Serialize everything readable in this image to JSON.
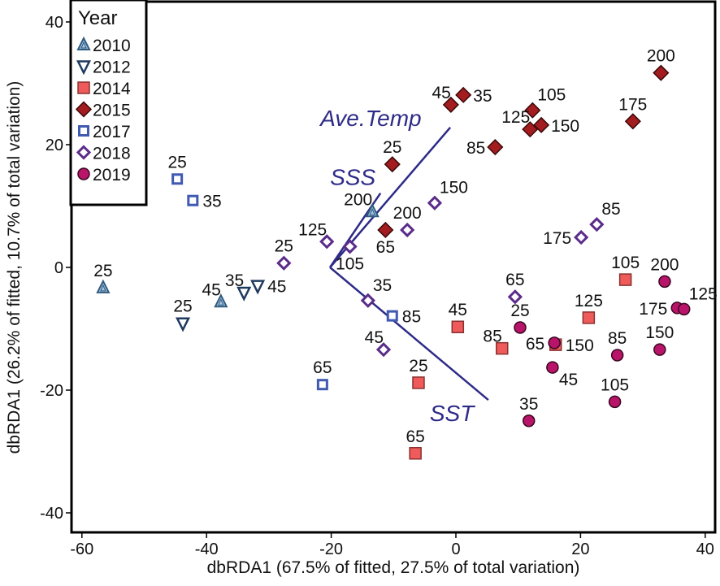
{
  "chart_data": {
    "type": "scatter",
    "xlabel": "dbRDA1 (67.5% of fitted, 27.5% of total variation)",
    "ylabel": "dbRDA1 (26.2% of fitted, 10.7% of total variation)",
    "xlim": [
      -62,
      40
    ],
    "ylim": [
      -43,
      41
    ],
    "xticks": [
      -60,
      -40,
      -20,
      0,
      20,
      40
    ],
    "yticks": [
      -40,
      -20,
      0,
      20,
      40
    ],
    "grid": false,
    "legend": {
      "title": "Year",
      "placement": "top-left"
    },
    "series": [
      {
        "name": "2010",
        "marker": "triangle-up",
        "fill": "#a9c6e2",
        "stroke": "#2f5b80",
        "points": [
          {
            "x": -56.6,
            "y": -3.3,
            "label": "25",
            "pos": "t"
          },
          {
            "x": -37.7,
            "y": -5.6,
            "label": "45",
            "pos": "tl"
          },
          {
            "x": -13.4,
            "y": 9.1,
            "label": "200",
            "pos": "tl"
          }
        ]
      },
      {
        "name": "2012",
        "marker": "triangle-down",
        "fill": "#ffffff",
        "stroke": "#1f3a5f",
        "points": [
          {
            "x": -43.8,
            "y": -9.1,
            "label": "25",
            "pos": "t"
          },
          {
            "x": -34.0,
            "y": -4.1,
            "label": "35",
            "pos": "tl"
          },
          {
            "x": -31.8,
            "y": -3.0,
            "label": "45",
            "pos": "r"
          }
        ]
      },
      {
        "name": "2014",
        "marker": "square",
        "fill": "#ef5b5b",
        "stroke": "#8a3030",
        "points": [
          {
            "x": 0.3,
            "y": -9.7,
            "label": "45",
            "pos": "t"
          },
          {
            "x": -6.0,
            "y": -18.8,
            "label": "25",
            "pos": "t"
          },
          {
            "x": -6.5,
            "y": -30.3,
            "label": "65",
            "pos": "t"
          },
          {
            "x": 7.4,
            "y": -13.2,
            "label": "85",
            "pos": "tl"
          },
          {
            "x": 21.3,
            "y": -8.2,
            "label": "125",
            "pos": "t"
          },
          {
            "x": 27.2,
            "y": -2.0,
            "label": "105",
            "pos": "t"
          },
          {
            "x": 16.0,
            "y": -12.6,
            "label": "150",
            "pos": "r"
          }
        ]
      },
      {
        "name": "2015",
        "marker": "diamond",
        "fill": "#a31c1f",
        "stroke": "#3a0808",
        "points": [
          {
            "x": -0.8,
            "y": 26.5,
            "label": "45",
            "pos": "tl"
          },
          {
            "x": 1.2,
            "y": 28.1,
            "label": "35",
            "pos": "r"
          },
          {
            "x": -10.2,
            "y": 16.8,
            "label": "25",
            "pos": "t"
          },
          {
            "x": -11.3,
            "y": 6.1,
            "label": "65",
            "pos": "b"
          },
          {
            "x": 6.3,
            "y": 19.6,
            "label": "85",
            "pos": "l"
          },
          {
            "x": 12.3,
            "y": 25.6,
            "label": "105",
            "pos": "tr"
          },
          {
            "x": 11.9,
            "y": 22.5,
            "label": "125",
            "pos": "tl"
          },
          {
            "x": 13.7,
            "y": 23.2,
            "label": "150",
            "pos": "r"
          },
          {
            "x": 28.4,
            "y": 23.8,
            "label": "175",
            "pos": "t"
          },
          {
            "x": 32.9,
            "y": 31.7,
            "label": "200",
            "pos": "t"
          }
        ]
      },
      {
        "name": "2017",
        "marker": "open-square",
        "fill": "#ffffff",
        "stroke": "#3f5ab0",
        "points": [
          {
            "x": -44.7,
            "y": 14.4,
            "label": "25",
            "pos": "t"
          },
          {
            "x": -42.2,
            "y": 10.9,
            "label": "35",
            "pos": "r"
          },
          {
            "x": -10.2,
            "y": -7.9,
            "label": "85",
            "pos": "r"
          },
          {
            "x": -21.4,
            "y": -19.1,
            "label": "65",
            "pos": "t"
          }
        ]
      },
      {
        "name": "2018",
        "marker": "open-diamond",
        "fill": "#ffffff",
        "stroke": "#5b2c8a",
        "points": [
          {
            "x": -27.6,
            "y": 0.7,
            "label": "25",
            "pos": "t"
          },
          {
            "x": -20.7,
            "y": 4.2,
            "label": "125",
            "pos": "tl"
          },
          {
            "x": -17.0,
            "y": 3.4,
            "label": "105",
            "pos": "b"
          },
          {
            "x": -14.1,
            "y": -5.4,
            "label": "35",
            "pos": "tr"
          },
          {
            "x": -11.6,
            "y": -13.4,
            "label": "45",
            "pos": "tl"
          },
          {
            "x": -7.8,
            "y": 6.1,
            "label": "200",
            "pos": "t"
          },
          {
            "x": -3.4,
            "y": 10.5,
            "label": "150",
            "pos": "tr"
          },
          {
            "x": 9.5,
            "y": -4.8,
            "label": "65",
            "pos": "t"
          },
          {
            "x": 20.1,
            "y": 4.9,
            "label": "175",
            "pos": "l"
          },
          {
            "x": 22.6,
            "y": 7.0,
            "label": "85",
            "pos": "tr"
          }
        ]
      },
      {
        "name": "2019",
        "marker": "circle",
        "fill": "#b8156a",
        "stroke": "#3a0620",
        "points": [
          {
            "x": 10.3,
            "y": -9.8,
            "label": "25",
            "pos": "t"
          },
          {
            "x": 11.7,
            "y": -25.0,
            "label": "35",
            "pos": "t"
          },
          {
            "x": 15.5,
            "y": -16.3,
            "label": "45",
            "pos": "br"
          },
          {
            "x": 15.8,
            "y": -12.3,
            "label": "65",
            "pos": "l"
          },
          {
            "x": 25.9,
            "y": -14.3,
            "label": "85",
            "pos": "t"
          },
          {
            "x": 25.5,
            "y": -21.9,
            "label": "105",
            "pos": "t"
          },
          {
            "x": 32.7,
            "y": -13.4,
            "label": "150",
            "pos": "t"
          },
          {
            "x": 35.5,
            "y": -6.6,
            "label": "175",
            "pos": "l"
          },
          {
            "x": 33.5,
            "y": -2.3,
            "label": "200",
            "pos": "t"
          },
          {
            "x": 36.6,
            "y": -6.8,
            "label": "125",
            "pos": "tr"
          }
        ]
      }
    ],
    "vectors": {
      "origin": {
        "x": -20.2,
        "y": 0
      },
      "color": "#2e2b87",
      "items": [
        {
          "name": "Ave.Temp",
          "x": -0.9,
          "y": 22.8
        },
        {
          "name": "SSS",
          "x": -12.1,
          "y": 12.1
        },
        {
          "name": "SST",
          "x": 5.2,
          "y": -21.6
        }
      ]
    }
  }
}
